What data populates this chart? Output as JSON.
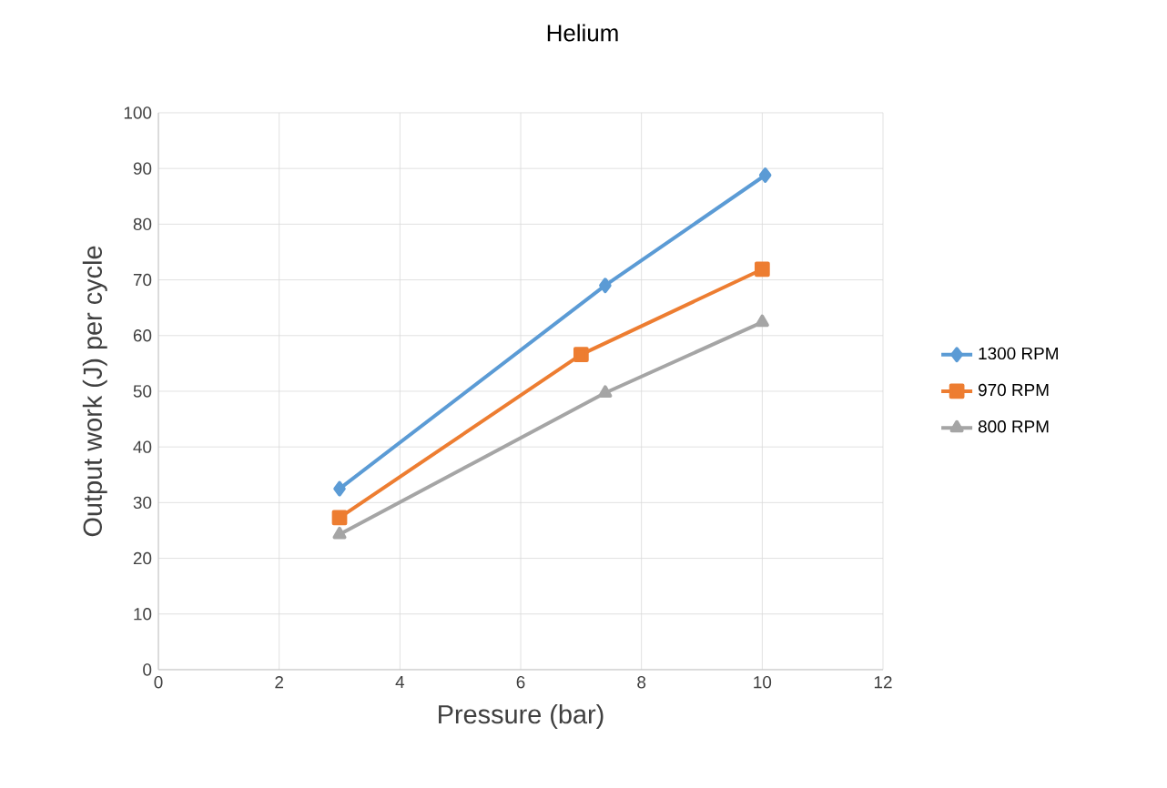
{
  "chart_data": {
    "type": "line",
    "title": "Helium",
    "xlabel": "Pressure (bar)",
    "ylabel": "Output work (J) per cycle",
    "xlim": [
      0,
      12
    ],
    "xticks": [
      0,
      2,
      4,
      6,
      8,
      10,
      12
    ],
    "ylim": [
      0,
      100
    ],
    "yticks": [
      0,
      10,
      20,
      30,
      40,
      50,
      60,
      70,
      80,
      90,
      100
    ],
    "grid": true,
    "legend": "right",
    "line_style": "solid",
    "series": [
      {
        "name": "1300 RPM",
        "color": "#5b9bd5",
        "marker": "diamond",
        "x": [
          3,
          7.4,
          10.05
        ],
        "values": [
          32.5,
          69,
          88.8
        ]
      },
      {
        "name": "970 RPM",
        "color": "#ed7d31",
        "marker": "square",
        "x": [
          3,
          7,
          10
        ],
        "values": [
          27.3,
          56.6,
          71.9
        ]
      },
      {
        "name": "800 RPM",
        "color": "#a5a5a5",
        "marker": "triangle",
        "x": [
          3,
          7.4,
          10
        ],
        "values": [
          24.3,
          49.7,
          62.4
        ]
      }
    ]
  }
}
